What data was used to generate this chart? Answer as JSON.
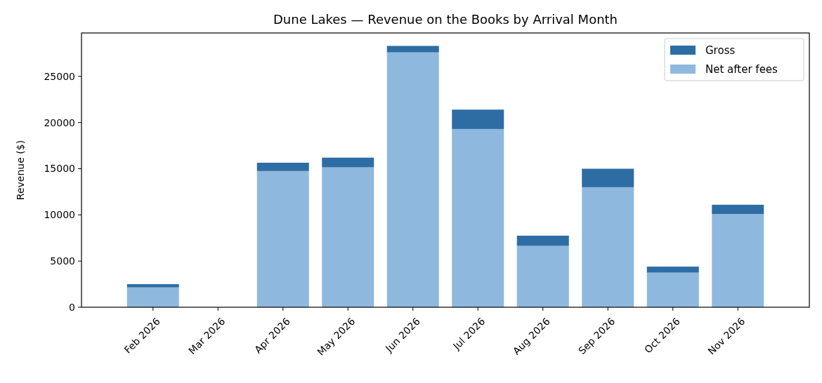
{
  "chart_data": {
    "type": "bar",
    "title": "Dune Lakes — Revenue on the Books by Arrival Month",
    "ylabel": "Revenue ($)",
    "categories": [
      "Feb 2026",
      "Mar 2026",
      "Apr 2026",
      "May 2026",
      "Jun 2026",
      "Jul 2026",
      "Aug 2026",
      "Sep 2026",
      "Oct 2026",
      "Nov 2026"
    ],
    "stacked": true,
    "series": [
      {
        "name": "Net after fees",
        "color": "#8fb8de",
        "values": [
          2150,
          0,
          14750,
          15150,
          27600,
          19300,
          6650,
          13000,
          3750,
          10100
        ]
      },
      {
        "name": "Gross",
        "color": "#2e6da4",
        "values": [
          350,
          0,
          900,
          1050,
          700,
          2100,
          1100,
          2000,
          650,
          1000
        ]
      }
    ],
    "ylim": [
      0,
      29700
    ],
    "yticks": [
      0,
      5000,
      10000,
      15000,
      20000,
      25000
    ],
    "legend": "top right",
    "grid": false
  }
}
